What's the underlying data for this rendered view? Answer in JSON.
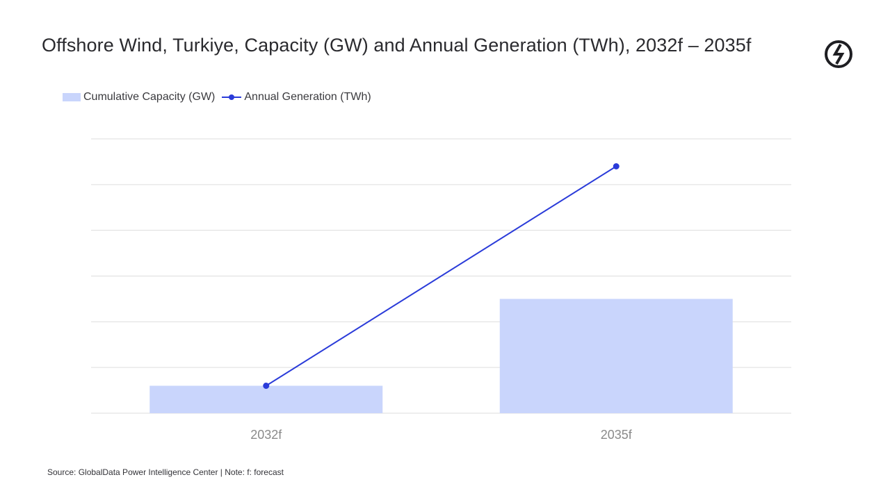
{
  "title": "Offshore Wind, Turkiye, Capacity (GW) and Annual Generation (TWh), 2032f – 2035f",
  "source": "Source: GlobalData Power Intelligence Center | Note: f: forecast",
  "logo": {
    "icon": "globaldata-logo-icon"
  },
  "colors": {
    "bar": "#c9d5fc",
    "line": "#2a3bd9",
    "grid": "#dddddd",
    "tick": "#8a8a8a"
  },
  "chart_data": {
    "type": "bar",
    "categories": [
      "2032f",
      "2035f"
    ],
    "series": [
      {
        "name": "Cumulative Capacity (GW)",
        "type": "bar",
        "axis": "left",
        "values": [
          0.3,
          1.25
        ]
      },
      {
        "name": "Annual Generation (TWh)",
        "type": "line",
        "axis": "right",
        "values": [
          1.2,
          10.8
        ]
      }
    ],
    "left_ylim": [
      0,
      3
    ],
    "right_ylim": [
      0,
      12
    ],
    "gridlines": 6,
    "grid": true,
    "legend_position": "top-left"
  }
}
